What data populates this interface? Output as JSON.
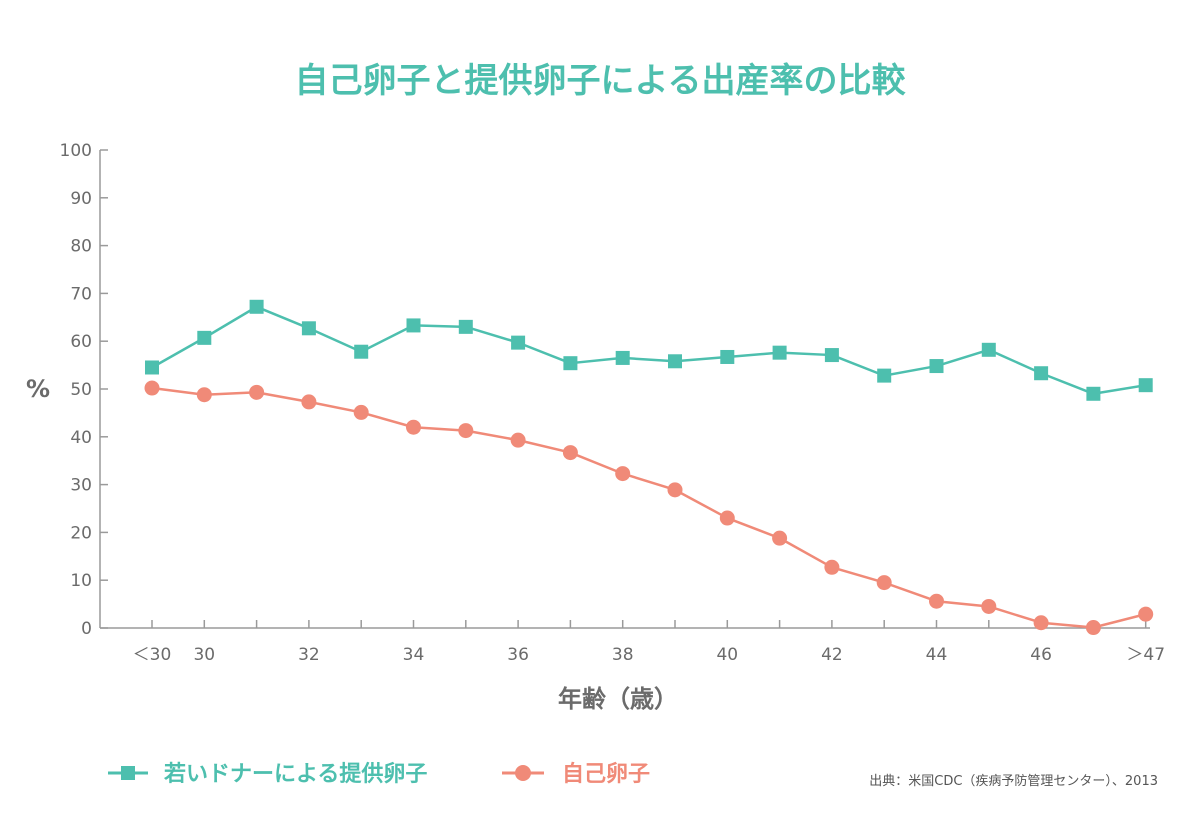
{
  "colors": {
    "title": "#4dbfae",
    "donor": "#4dbfae",
    "own": "#f08a78",
    "axis": "#9a9a9a",
    "text": "#6b6b6b"
  },
  "source_note": "出典：米国CDC（疾病予防管理センター）、2013",
  "chart_data": {
    "type": "line",
    "title": "自己卵子と提供卵子による出産率の比較",
    "xlabel": "年齢（歳）",
    "ylabel": "%",
    "ylim": [
      0,
      100
    ],
    "yticks": [
      "0",
      "10",
      "20",
      "30",
      "40",
      "50",
      "60",
      "70",
      "80",
      "90",
      "100"
    ],
    "x": [
      "<30",
      "30",
      "31",
      "32",
      "33",
      "34",
      "35",
      "36",
      "37",
      "38",
      "39",
      "40",
      "41",
      "42",
      "43",
      "44",
      "45",
      "46",
      "47",
      ">47"
    ],
    "xtick_labels": [
      "＜30",
      "30",
      "",
      "32",
      "",
      "34",
      "",
      "36",
      "",
      "38",
      "",
      "40",
      "",
      "42",
      "",
      "44",
      "",
      "46",
      "",
      "＞47"
    ],
    "grid": false,
    "legend_position": "bottom-left",
    "series": [
      {
        "name": "若いドナーによる提供卵子",
        "marker": "square",
        "values": [
          54.5,
          60.7,
          67.2,
          62.7,
          57.8,
          63.3,
          63.0,
          59.7,
          55.4,
          56.5,
          55.8,
          56.7,
          57.6,
          57.1,
          52.8,
          54.8,
          58.2,
          53.3,
          49.0,
          50.8
        ]
      },
      {
        "name": "自己卵子",
        "marker": "circle",
        "values": [
          50.2,
          48.8,
          49.3,
          47.3,
          45.1,
          42.0,
          41.3,
          39.3,
          36.7,
          32.3,
          28.9,
          23.0,
          18.8,
          12.7,
          9.5,
          5.6,
          4.5,
          1.1,
          0.1,
          2.9
        ]
      }
    ]
  }
}
